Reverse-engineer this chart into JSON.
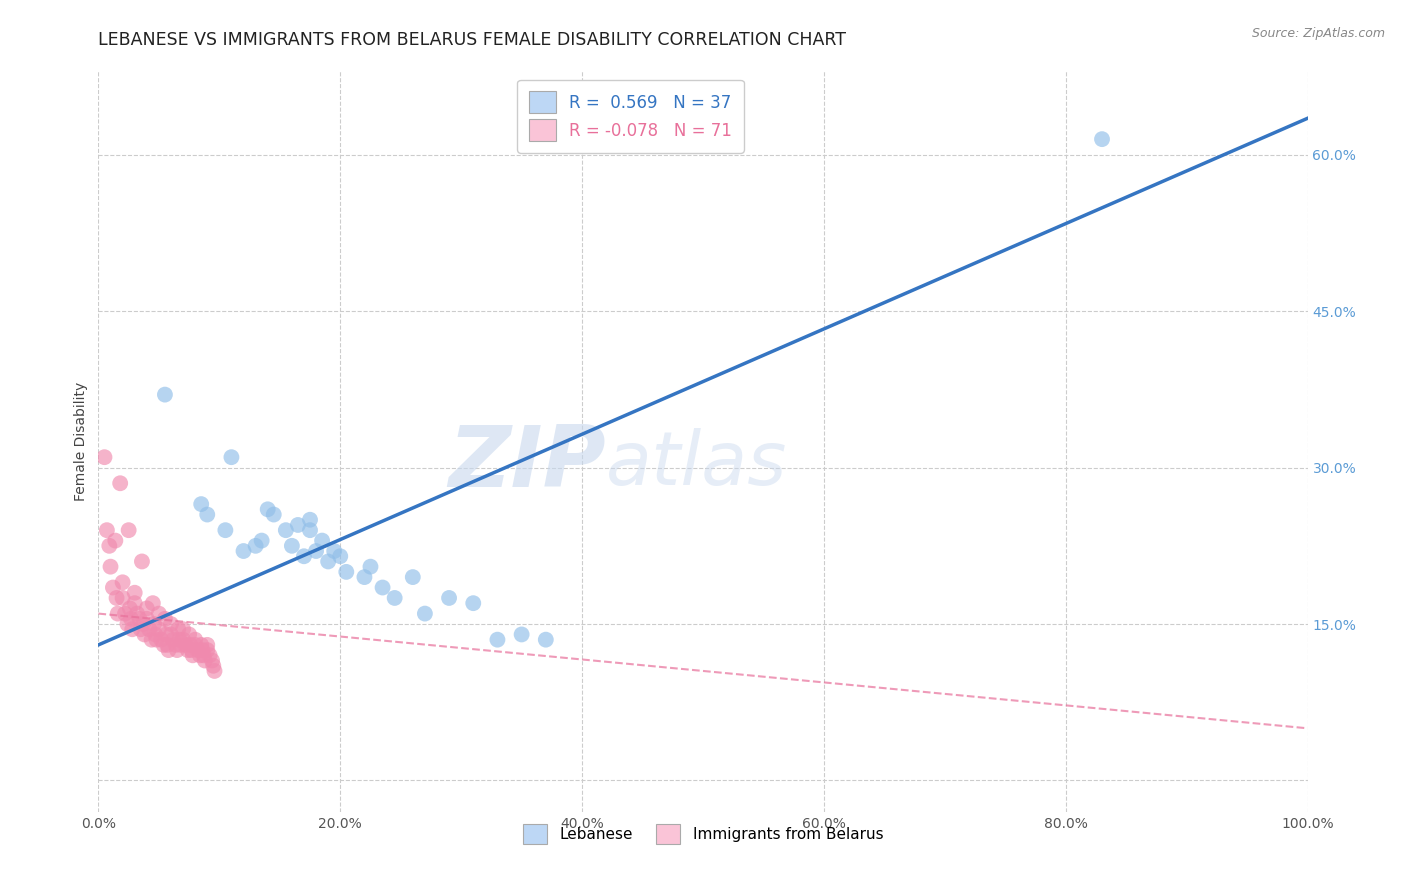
{
  "title": "LEBANESE VS IMMIGRANTS FROM BELARUS FEMALE DISABILITY CORRELATION CHART",
  "source_text": "Source: ZipAtlas.com",
  "ylabel": "Female Disability",
  "xlabel": "",
  "watermark_zip": "ZIP",
  "watermark_atlas": "atlas",
  "xlim": [
    0.0,
    100.0
  ],
  "ylim": [
    -3.0,
    68.0
  ],
  "yticks": [
    0,
    15.0,
    30.0,
    45.0,
    60.0
  ],
  "xticks": [
    0.0,
    20.0,
    40.0,
    60.0,
    80.0,
    100.0
  ],
  "legend_labels": [
    "Lebanese",
    "Immigrants from Belarus"
  ],
  "legend_R": [
    "0.569",
    "-0.078"
  ],
  "legend_N": [
    "37",
    "71"
  ],
  "blue_color": "#90BEE8",
  "pink_color": "#F08AAE",
  "blue_line_color": "#3575C2",
  "pink_line_color": "#E8709A",
  "legend_blue_fill": "#BDD7F5",
  "legend_pink_fill": "#FAC4D7",
  "background_color": "#FFFFFF",
  "grid_color": "#CCCCCC",
  "title_fontsize": 12.5,
  "label_fontsize": 10,
  "tick_fontsize": 10,
  "blue_scatter_x": [
    5.5,
    8.5,
    9.0,
    10.5,
    11.0,
    12.0,
    13.0,
    13.5,
    14.0,
    14.5,
    15.5,
    16.0,
    16.5,
    17.0,
    17.5,
    17.5,
    18.0,
    18.5,
    19.0,
    19.5,
    20.0,
    20.5,
    22.0,
    22.5,
    23.5,
    24.5,
    26.0,
    27.0,
    29.0,
    31.0,
    33.0,
    35.0,
    37.0,
    83.0
  ],
  "blue_scatter_y": [
    37.0,
    26.5,
    25.5,
    24.0,
    31.0,
    22.0,
    22.5,
    23.0,
    26.0,
    25.5,
    24.0,
    22.5,
    24.5,
    21.5,
    25.0,
    24.0,
    22.0,
    23.0,
    21.0,
    22.0,
    21.5,
    20.0,
    19.5,
    20.5,
    18.5,
    17.5,
    19.5,
    16.0,
    17.5,
    17.0,
    13.5,
    14.0,
    13.5,
    61.5
  ],
  "pink_scatter_x": [
    0.5,
    0.7,
    0.9,
    1.0,
    1.2,
    1.4,
    1.5,
    1.6,
    1.8,
    2.0,
    2.0,
    2.2,
    2.4,
    2.5,
    2.6,
    2.7,
    2.8,
    3.0,
    3.0,
    3.2,
    3.4,
    3.5,
    3.6,
    3.7,
    3.8,
    4.0,
    4.0,
    4.2,
    4.4,
    4.5,
    4.6,
    4.7,
    4.8,
    5.0,
    5.0,
    5.2,
    5.4,
    5.5,
    5.6,
    5.7,
    5.8,
    6.0,
    6.0,
    6.2,
    6.4,
    6.5,
    6.6,
    6.7,
    6.8,
    7.0,
    7.0,
    7.2,
    7.4,
    7.5,
    7.6,
    7.7,
    7.8,
    8.0,
    8.0,
    8.2,
    8.4,
    8.5,
    8.6,
    8.7,
    8.8,
    9.0,
    9.0,
    9.2,
    9.4,
    9.5,
    9.6
  ],
  "pink_scatter_y": [
    31.0,
    24.0,
    22.5,
    20.5,
    18.5,
    23.0,
    17.5,
    16.0,
    28.5,
    19.0,
    17.5,
    16.0,
    15.0,
    24.0,
    16.5,
    15.5,
    14.5,
    18.0,
    17.0,
    16.0,
    15.5,
    14.5,
    21.0,
    15.0,
    14.0,
    16.5,
    15.5,
    14.5,
    13.5,
    17.0,
    15.0,
    14.0,
    13.5,
    16.0,
    14.5,
    13.5,
    13.0,
    15.5,
    14.0,
    13.0,
    12.5,
    15.0,
    14.0,
    13.5,
    13.0,
    12.5,
    14.5,
    13.5,
    13.0,
    14.5,
    13.5,
    13.0,
    12.5,
    14.0,
    13.0,
    12.5,
    12.0,
    13.5,
    13.0,
    12.5,
    12.0,
    13.0,
    12.5,
    12.0,
    11.5,
    13.0,
    12.5,
    12.0,
    11.5,
    11.0,
    10.5
  ],
  "blue_line_x": [
    0,
    100
  ],
  "blue_line_y": [
    13.0,
    63.5
  ],
  "pink_line_x": [
    0,
    100
  ],
  "pink_line_y": [
    16.0,
    5.0
  ]
}
